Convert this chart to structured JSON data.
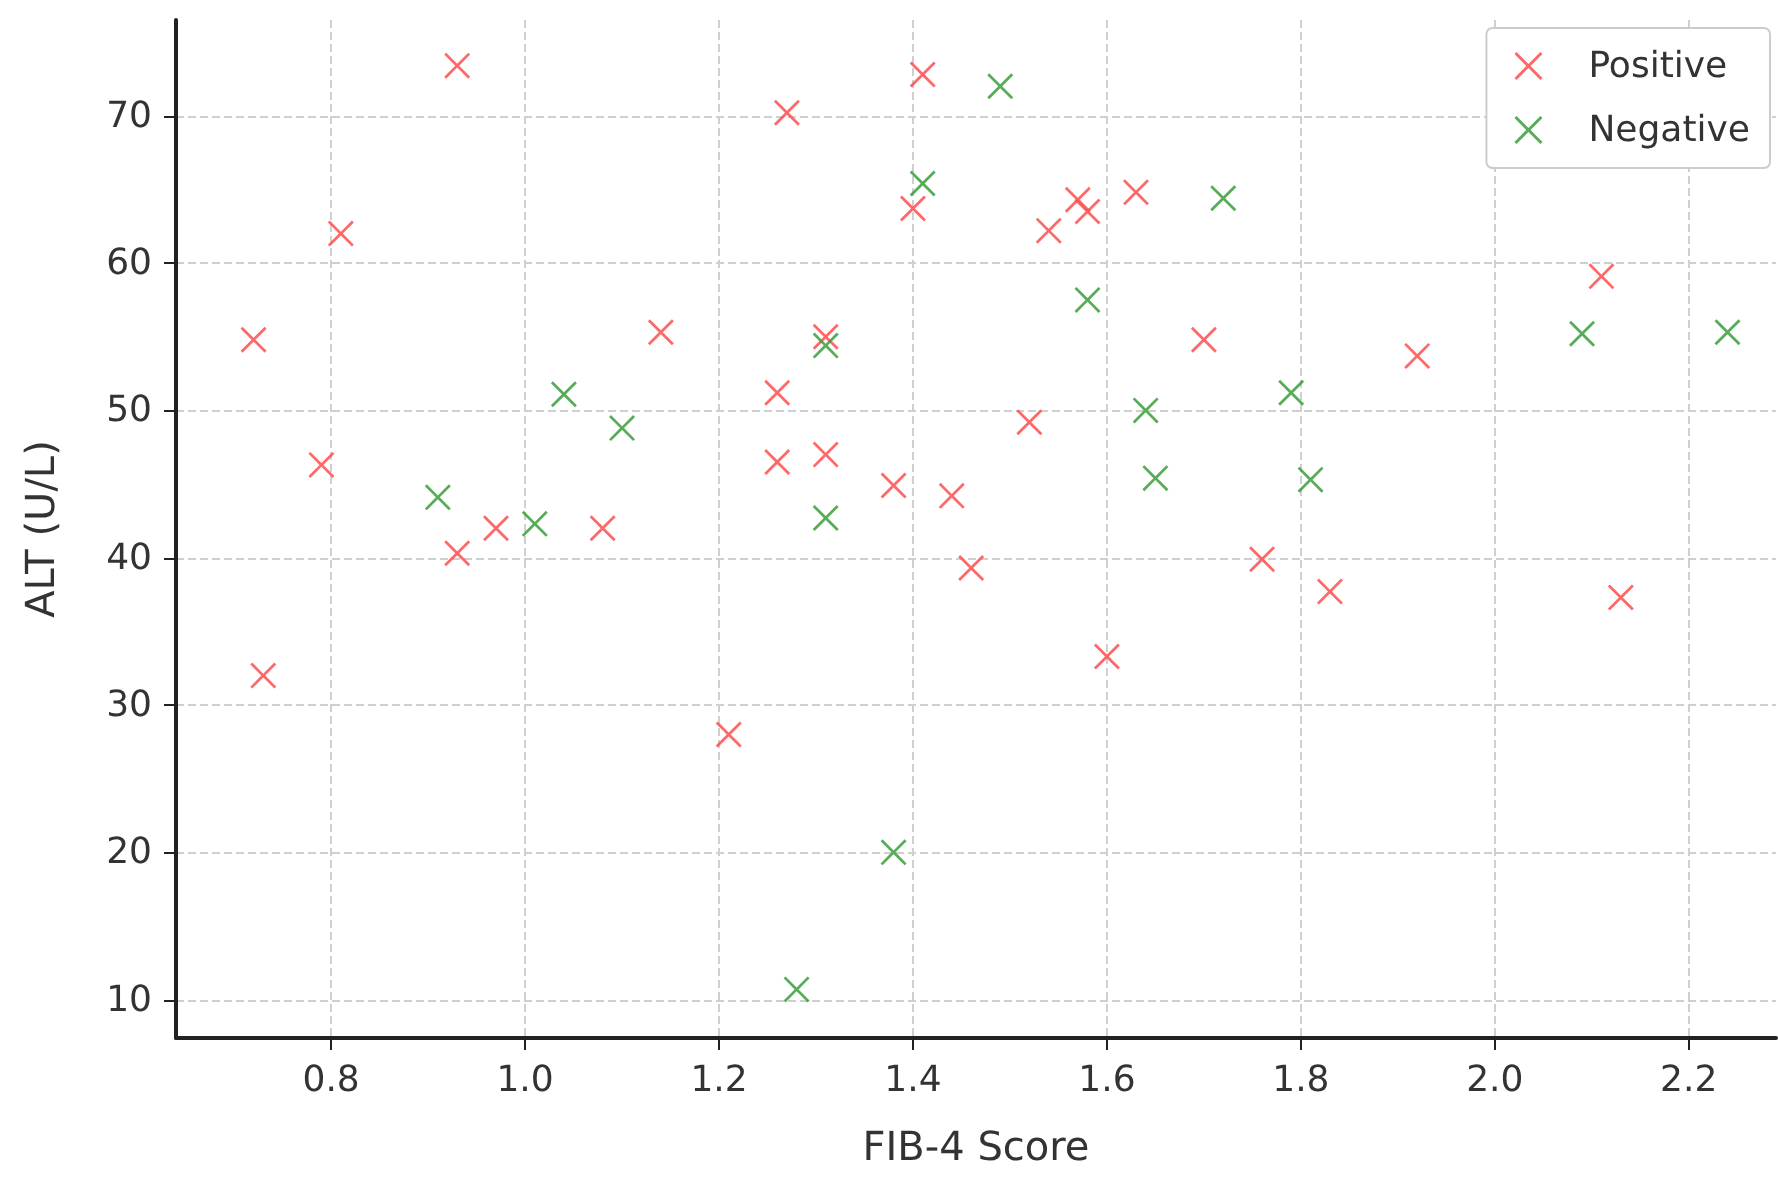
{
  "chart_data": {
    "type": "scatter",
    "xlabel": "FIB-4 Score",
    "ylabel": "ALT (U/L)",
    "xlim": [
      0.64,
      2.29
    ],
    "xticks": [
      0.8,
      {
        "value": 1,
        "label": "1.0"
      },
      1.2,
      1.4,
      1.6,
      1.8,
      {
        "value": 2,
        "label": "2.0"
      },
      2.2
    ],
    "ylim": [
      7.4,
      76.5
    ],
    "yticks": [
      10,
      20,
      30,
      40,
      50,
      60,
      70
    ],
    "grid": true,
    "legend": "top right",
    "marker": "cross",
    "series": [
      {
        "name": "Positive",
        "color": "#ff4d4d",
        "x": [
          0.72,
          0.73,
          0.79,
          0.81,
          0.93,
          0.93,
          0.97,
          1.08,
          1.14,
          1.21,
          1.26,
          1.26,
          1.27,
          1.31,
          1.31,
          1.38,
          1.41,
          1.4,
          1.44,
          1.46,
          1.52,
          1.54,
          1.57,
          1.58,
          1.6,
          1.63,
          1.7,
          1.76,
          1.83,
          1.92,
          2.11,
          2.13
        ],
        "values": [
          54.8,
          32.0,
          46.3,
          62.0,
          73.4,
          40.3,
          42.0,
          42.0,
          55.3,
          28.0,
          51.2,
          46.5,
          70.2,
          55.0,
          47.0,
          44.9,
          72.8,
          63.7,
          44.2,
          39.3,
          49.2,
          62.2,
          64.3,
          63.5,
          33.3,
          64.8,
          54.8,
          39.9,
          37.7,
          53.7,
          59.1,
          37.3
        ]
      },
      {
        "name": "Negative",
        "color": "#3a9e3a",
        "x": [
          0.91,
          1.01,
          1.04,
          1.1,
          1.31,
          1.31,
          1.38,
          1.28,
          1.41,
          1.49,
          1.58,
          1.64,
          1.65,
          1.72,
          1.79,
          1.81,
          2.09,
          2.24
        ],
        "values": [
          44.1,
          42.3,
          51.1,
          48.8,
          54.4,
          42.7,
          20.0,
          10.7,
          65.4,
          72.0,
          57.5,
          50.0,
          45.4,
          64.4,
          51.2,
          45.3,
          55.2,
          55.3
        ]
      }
    ]
  }
}
